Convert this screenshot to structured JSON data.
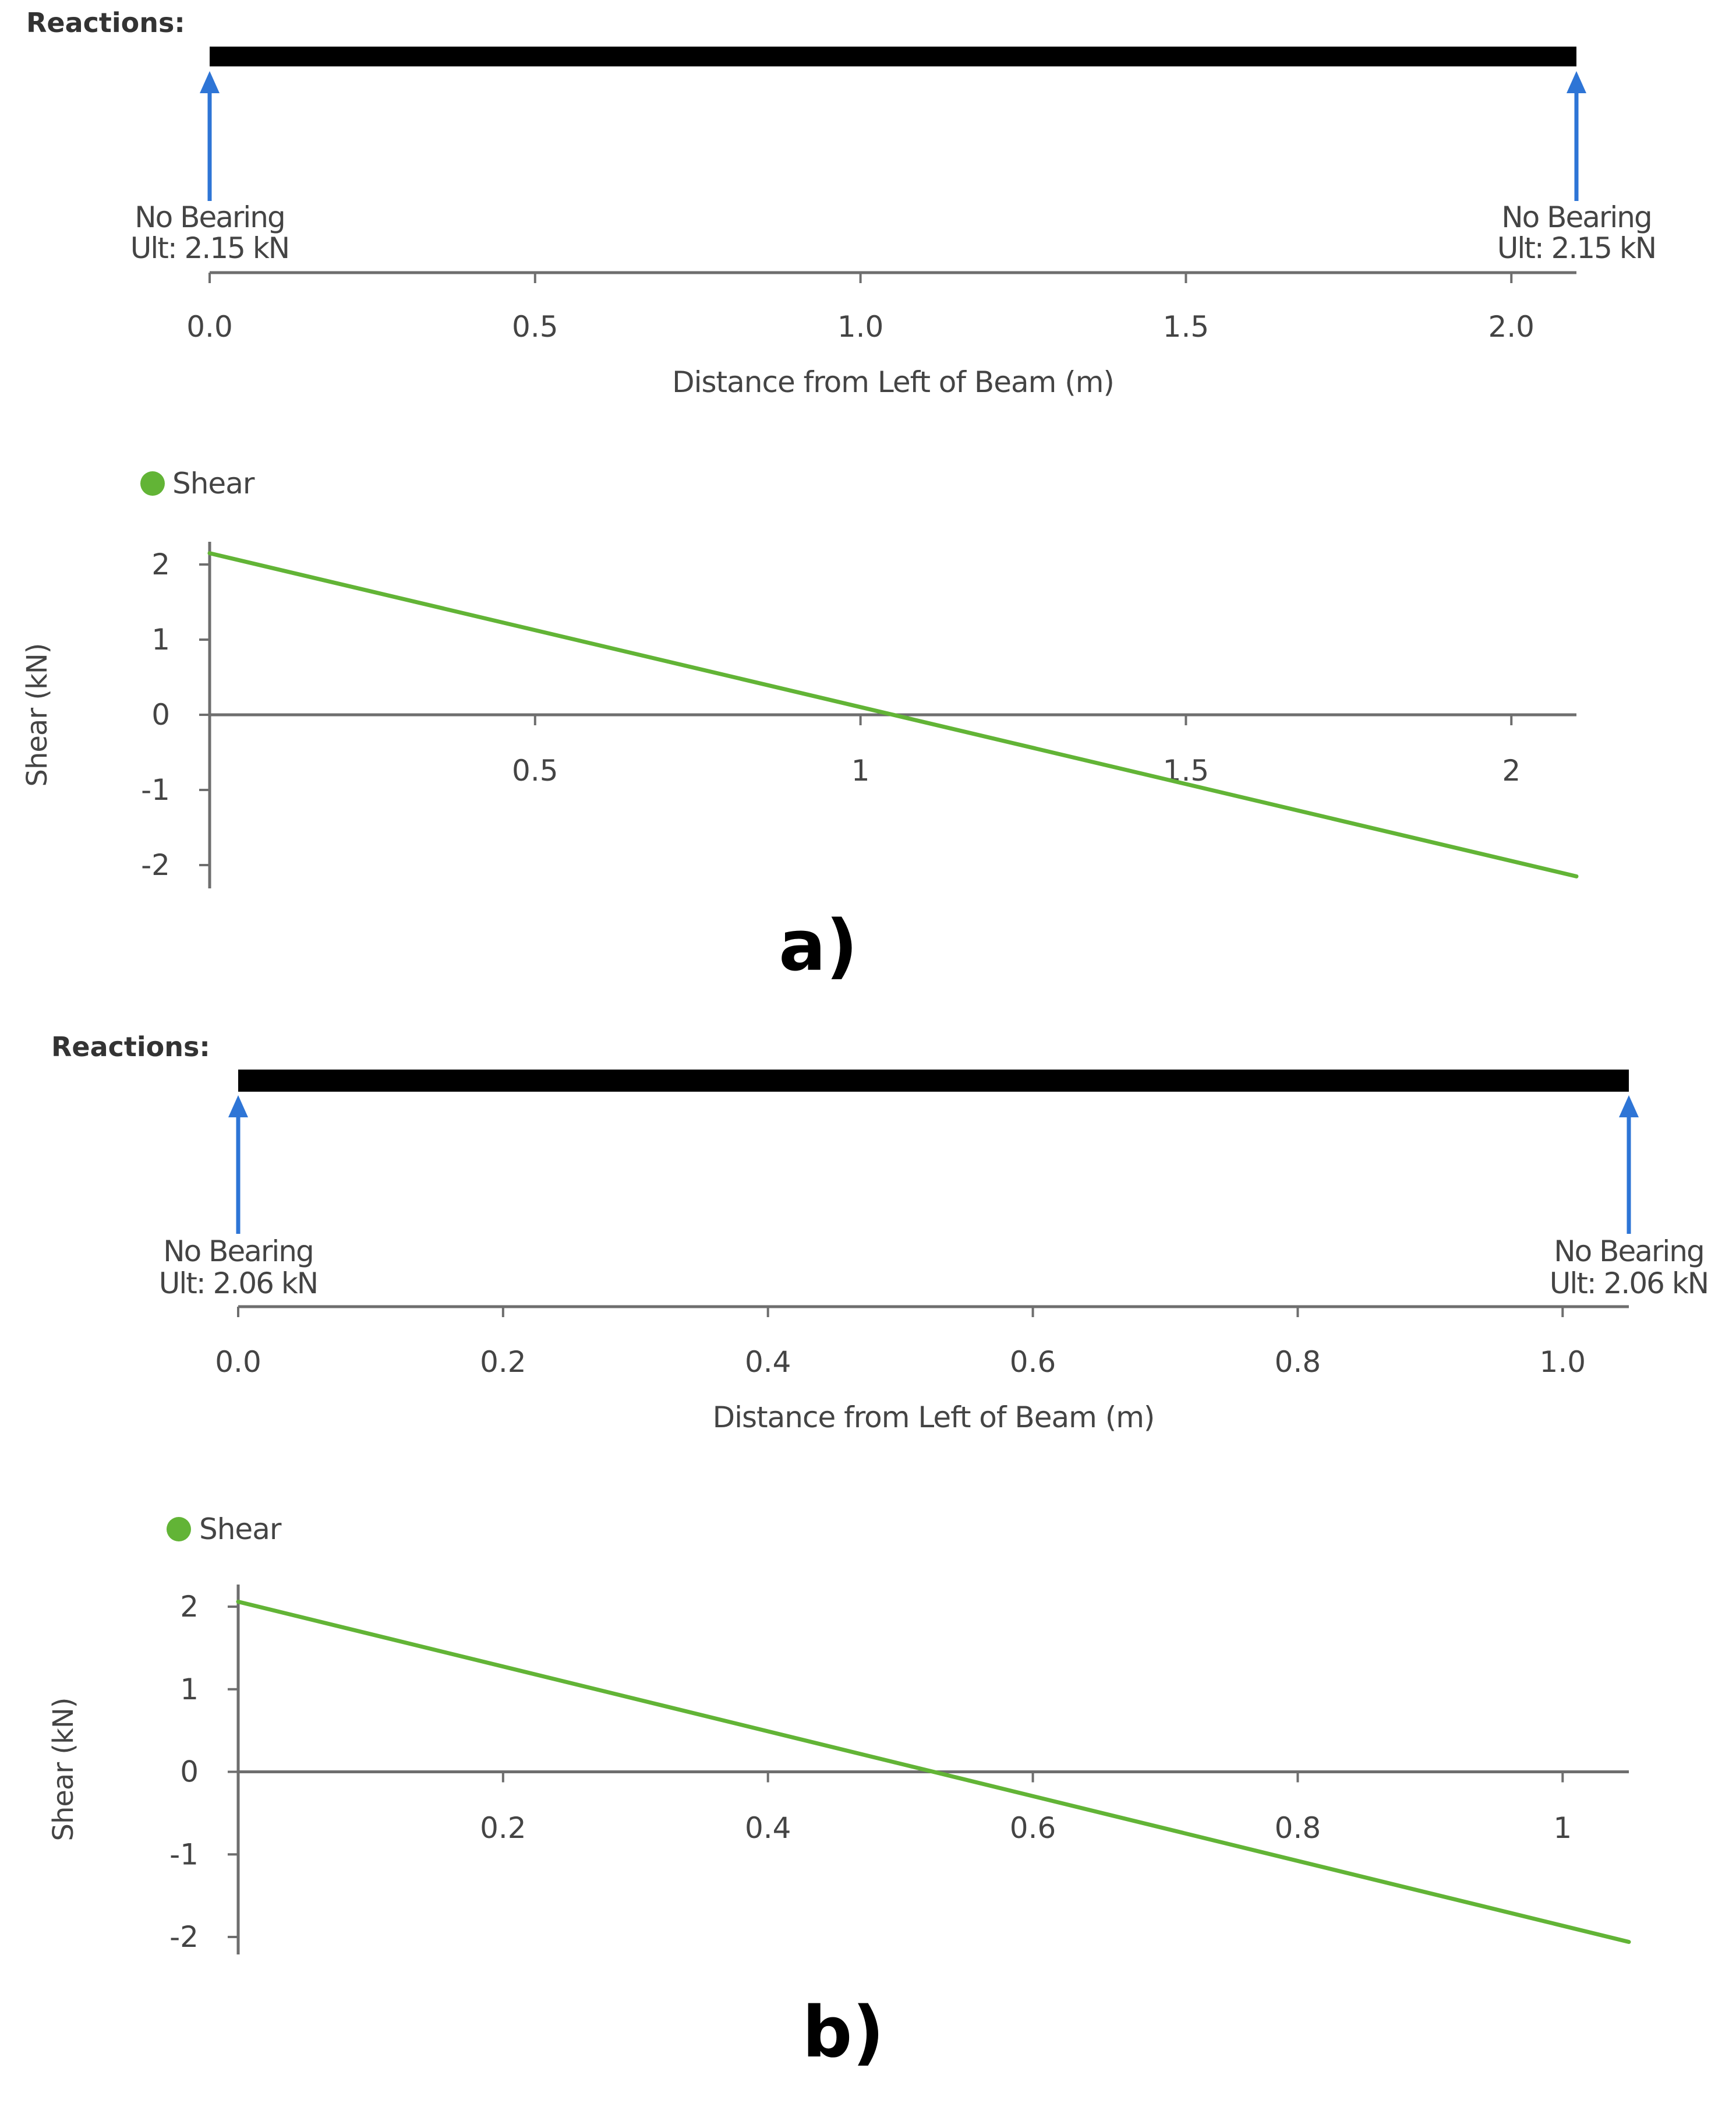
{
  "colors": {
    "beam": "#000000",
    "reaction_arrow": "#2e75d6",
    "shear_line": "#62b436",
    "axis": "#6e6e6e",
    "text": "#444444",
    "title_text": "#333333"
  },
  "panels": [
    {
      "label": "a)",
      "reactions": {
        "title": "Reactions:",
        "beam_length": 2.1,
        "supports": [
          {
            "x": 0.0,
            "line1": "No Bearing",
            "line2": "Ult: 2.15 kN"
          },
          {
            "x": 2.1,
            "line1": "No Bearing",
            "line2": "Ult: 2.15 kN"
          }
        ],
        "x_ticks": [
          "0.0",
          "0.5",
          "1.0",
          "1.5",
          "2.0"
        ],
        "xlabel": "Distance from Left of Beam (m)"
      }
    },
    {
      "label": "b)",
      "reactions": {
        "title": "Reactions:",
        "beam_length": 1.05,
        "supports": [
          {
            "x": 0.0,
            "line1": "No Bearing",
            "line2": "Ult: 2.06 kN"
          },
          {
            "x": 1.05,
            "line1": "No Bearing",
            "line2": "Ult: 2.06 kN"
          }
        ],
        "x_ticks": [
          "0.0",
          "0.2",
          "0.4",
          "0.6",
          "0.8",
          "1.0"
        ],
        "xlabel": "Distance from Left of Beam (m)"
      }
    }
  ],
  "chart_data": [
    {
      "type": "line",
      "legend": "Shear",
      "ylabel": "Shear (kN)",
      "xlim": [
        0,
        2.1
      ],
      "ylim": [
        -2,
        2
      ],
      "x_ticks": [
        "0.5",
        "1",
        "1.5",
        "2"
      ],
      "y_ticks": [
        "2",
        "1",
        "0",
        "-1",
        "-2"
      ],
      "series": [
        {
          "name": "Shear",
          "x": [
            0,
            2.1
          ],
          "y": [
            2.15,
            -2.15
          ]
        }
      ]
    },
    {
      "type": "line",
      "legend": "Shear",
      "ylabel": "Shear (kN)",
      "xlim": [
        0,
        1.05
      ],
      "ylim": [
        -2,
        2
      ],
      "x_ticks": [
        "0.2",
        "0.4",
        "0.6",
        "0.8",
        "1"
      ],
      "y_ticks": [
        "2",
        "1",
        "0",
        "-1",
        "-2"
      ],
      "series": [
        {
          "name": "Shear",
          "x": [
            0,
            1.05
          ],
          "y": [
            2.06,
            -2.06
          ]
        }
      ]
    }
  ]
}
